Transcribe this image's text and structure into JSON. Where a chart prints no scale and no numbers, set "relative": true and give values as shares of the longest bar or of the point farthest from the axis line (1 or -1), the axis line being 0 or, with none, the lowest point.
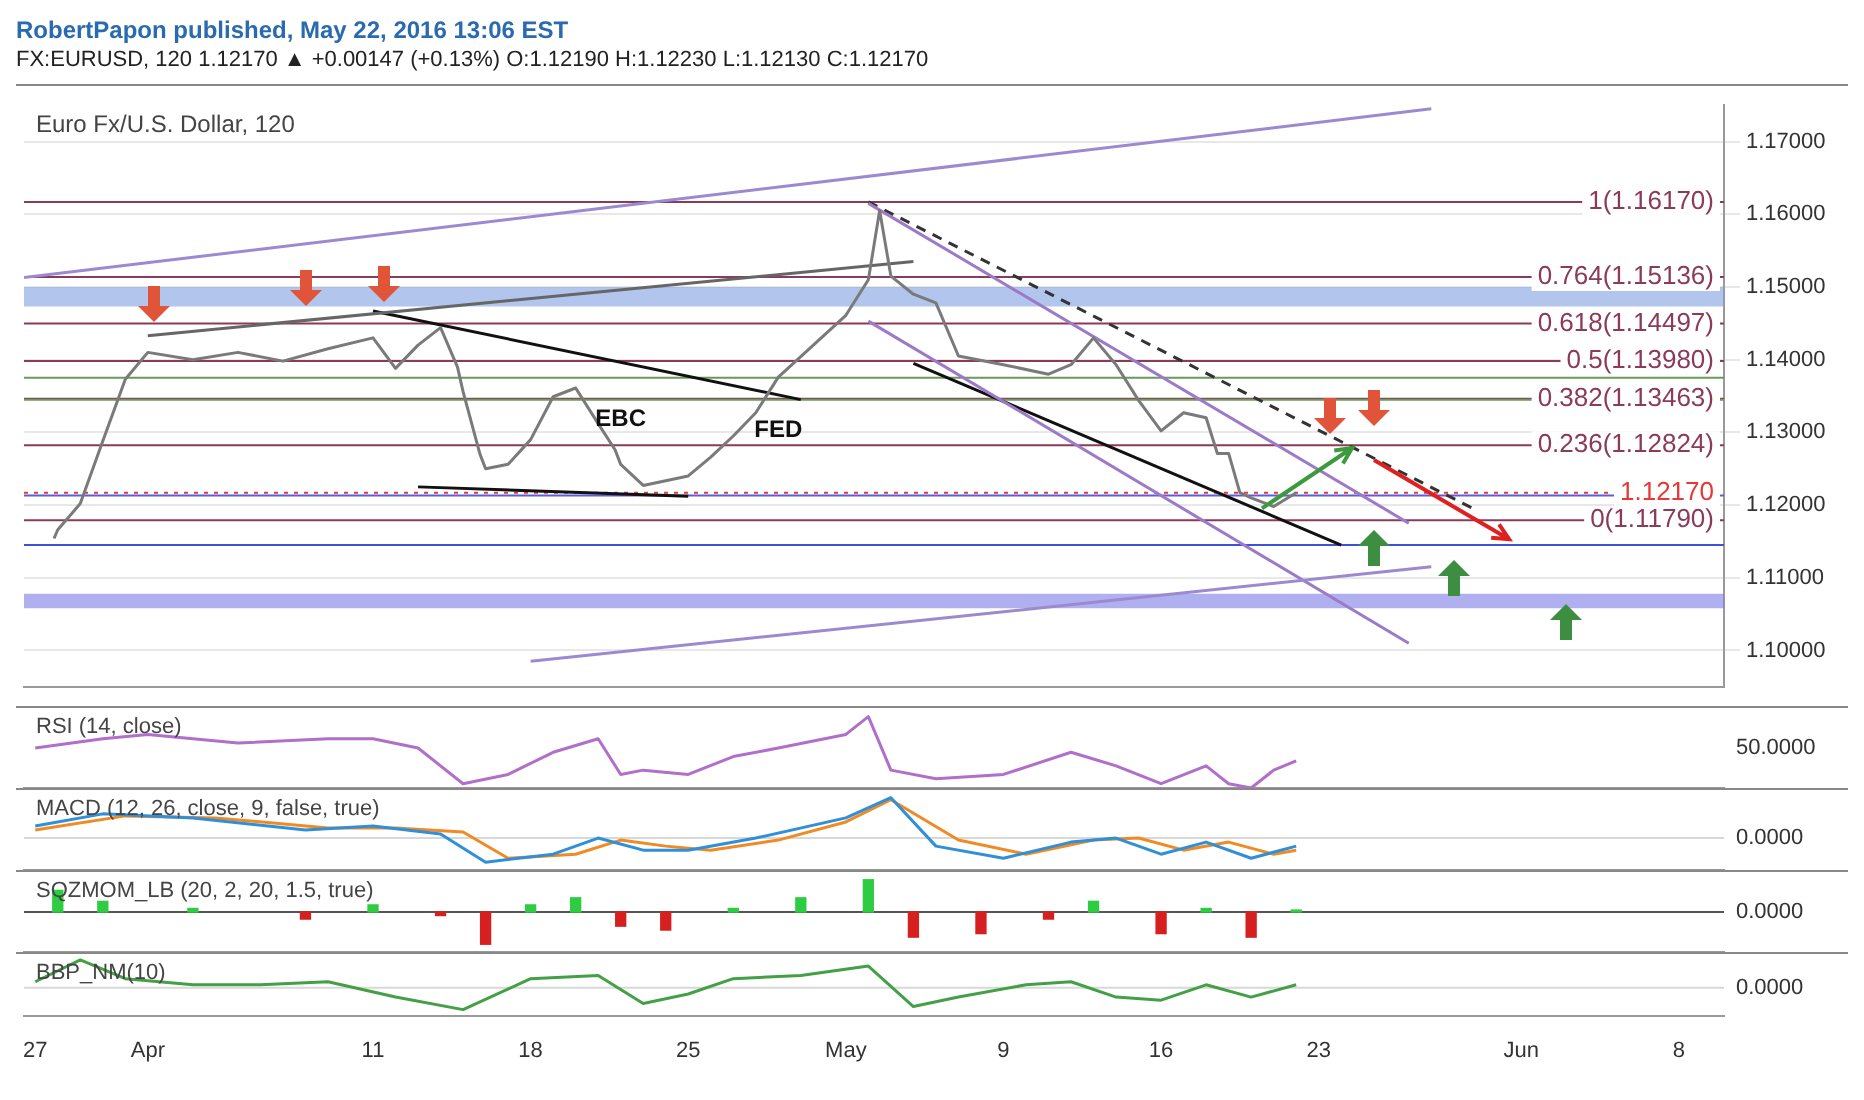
{
  "chart_data": [
    {
      "type": "line",
      "title": "Euro Fx/U.S. Dollar, 120",
      "subtitle": "FX:EURUSD, 120  1.12170 ▲ +0.00147 (+0.13%)  O:1.12190  H:1.12230  L:1.12130  C:1.12170",
      "annotations": [
        "RobertPapon published, May 22, 2016 13:06 EST",
        "EBC",
        "FED"
      ],
      "series": [
        {
          "color": "#7a7a7a",
          "x": [
            "2016-03-27T20:00",
            "2016-03-28",
            "2016-03-29",
            "2016-03-30",
            "2016-03-31",
            "2016-04-01",
            "2016-04-03",
            "2016-04-05",
            "2016-04-07",
            "2016-04-09",
            "2016-04-11",
            "2016-04-12",
            "2016-04-13",
            "2016-04-14",
            "2016-04-14T18:00",
            "2016-04-15",
            "2016-04-15T18:00",
            "2016-04-16",
            "2016-04-17",
            "2016-04-18",
            "2016-04-19",
            "2016-04-20",
            "2016-04-21",
            "2016-04-21T18:00",
            "2016-04-22",
            "2016-04-23",
            "2016-04-25",
            "2016-04-26",
            "2016-04-27",
            "2016-04-28",
            "2016-04-29",
            "2016-05-02",
            "2016-05-03",
            "2016-05-03T12:00",
            "2016-05-04",
            "2016-05-05",
            "2016-05-06",
            "2016-05-07",
            "2016-05-09",
            "2016-05-11",
            "2016-05-12",
            "2016-05-13",
            "2016-05-14",
            "2016-05-15",
            "2016-05-16",
            "2016-05-17",
            "2016-05-18",
            "2016-05-18T12:00",
            "2016-05-19",
            "2016-05-19T12:00",
            "2016-05-20",
            "2016-05-21",
            "2016-05-22"
          ],
          "values": [
            1.1154,
            1.1166,
            1.1202,
            1.1288,
            1.1373,
            1.141,
            1.14,
            1.141,
            1.1398,
            1.1415,
            1.143,
            1.1388,
            1.142,
            1.1444,
            1.139,
            1.1356,
            1.127,
            1.125,
            1.1256,
            1.129,
            1.1349,
            1.1361,
            1.1312,
            1.1276,
            1.1256,
            1.1227,
            1.124,
            1.1266,
            1.1295,
            1.1327,
            1.1376,
            1.1461,
            1.151,
            1.1605,
            1.1515,
            1.149,
            1.1478,
            1.1405,
            1.1393,
            1.138,
            1.1393,
            1.143,
            1.1393,
            1.1344,
            1.1302,
            1.1327,
            1.132,
            1.1271,
            1.1271,
            1.1217,
            1.121,
            1.1198,
            1.1217
          ]
        },
        {
          "type": "line",
          "color": "#9c8ad0",
          "x": [
            "2016-03-26T12:00",
            "2016-05-28"
          ],
          "values": [
            1.1513,
            1.1745
          ]
        },
        {
          "type": "line",
          "color": "#9c8ad0",
          "x": [
            "2016-04-18",
            "2016-05-28"
          ],
          "values": [
            1.0985,
            1.1115
          ]
        },
        {
          "type": "line",
          "color": "#9c7ac8",
          "x": [
            "2016-05-03",
            "2016-05-27"
          ],
          "values": [
            1.1615,
            1.1175
          ]
        },
        {
          "type": "line",
          "color": "#9c7ac8",
          "x": [
            "2016-05-03",
            "2016-05-27"
          ],
          "values": [
            1.1453,
            1.101
          ]
        },
        {
          "type": "line",
          "color": "#333333",
          "line_style": "dashed",
          "x": [
            "2016-05-03",
            "2016-05-30"
          ],
          "values": [
            1.1617,
            1.1193
          ]
        },
        {
          "type": "line",
          "color": "#666666",
          "x": [
            "2016-04-01",
            "2016-05-05"
          ],
          "values": [
            1.1433,
            1.1535
          ]
        },
        {
          "type": "line",
          "color": "#111111",
          "x": [
            "2016-04-11",
            "2016-04-30"
          ],
          "values": [
            1.1467,
            1.1345
          ]
        },
        {
          "type": "line",
          "color": "#111111",
          "x": [
            "2016-04-13",
            "2016-04-25"
          ],
          "values": [
            1.1225,
            1.1212
          ]
        },
        {
          "type": "line",
          "color": "#111111",
          "x": [
            "2016-05-05",
            "2016-05-24"
          ],
          "values": [
            1.1395,
            1.1145
          ]
        }
      ],
      "xlim": [
        "2016-03-26T12:00",
        "2016-06-10"
      ],
      "xticks": [
        {
          "value": "2016-03-27",
          "label": null
        },
        {
          "value": "2016-04-01",
          "label": null
        },
        {
          "value": "2016-04-11",
          "label": null
        },
        {
          "value": "2016-04-18",
          "label": null
        },
        {
          "value": "2016-04-25",
          "label": null
        },
        {
          "value": "2016-05-02",
          "label": null
        },
        {
          "value": "2016-05-09",
          "label": null
        },
        {
          "value": "2016-05-16",
          "label": null
        },
        {
          "value": "2016-05-23",
          "label": null
        },
        {
          "value": "2016-06-01",
          "label": null
        },
        {
          "value": "2016-06-08",
          "label": null
        }
      ],
      "ylim": [
        1.095,
        1.175
      ],
      "yticks": [
        {
          "value": 1.1,
          "label": "1.10000"
        },
        {
          "value": 1.11,
          "label": "1.11000"
        },
        {
          "value": 1.12,
          "label": "1.12000"
        },
        {
          "value": 1.13,
          "label": "1.13000"
        },
        {
          "value": 1.14,
          "label": "1.14000"
        },
        {
          "value": 1.15,
          "label": "1.15000"
        },
        {
          "value": 1.16,
          "label": "1.16000"
        },
        {
          "value": 1.17,
          "label": "1.17000"
        }
      ],
      "ref_lines": [
        {
          "axis": "y",
          "value": 1.1617,
          "label": "1(1.16170)",
          "color": "#8b3a5a"
        },
        {
          "axis": "y",
          "value": 1.15136,
          "label": "0.764(1.15136)",
          "color": "#8b3a5a"
        },
        {
          "axis": "y",
          "value": 1.14497,
          "label": "0.618(1.14497)",
          "color": "#8b3a5a"
        },
        {
          "axis": "y",
          "value": 1.1398,
          "label": "0.5(1.13980)",
          "color": "#8b3a5a"
        },
        {
          "axis": "y",
          "value": 1.13463,
          "label": "0.382(1.13463)",
          "color": "#8b3a5a"
        },
        {
          "axis": "y",
          "value": 1.12824,
          "label": "0.236(1.12824)",
          "color": "#8b3a5a"
        },
        {
          "axis": "y",
          "value": 1.1179,
          "label": "0(1.11790)",
          "color": "#8b3a5a"
        },
        {
          "axis": "y",
          "value": 1.1217,
          "label": "1.12170",
          "color": "#e53935",
          "line_style": "dotted"
        },
        {
          "axis": "y",
          "value": 1.1375,
          "color": "#6a9a5a"
        },
        {
          "axis": "y",
          "value": 1.1345,
          "color": "#6a9a5a"
        },
        {
          "axis": "y",
          "value": 1.1145,
          "color": "#3f51d8"
        },
        {
          "axis": "y",
          "value": 1.1213,
          "color": "#5c5ce0"
        }
      ],
      "bands": [
        {
          "axis": "y",
          "from": 1.1473,
          "to": 1.15,
          "color": "#7f9fe0"
        },
        {
          "axis": "y",
          "from": 1.1058,
          "to": 1.1078,
          "color": "#7b7be8"
        }
      ],
      "grid": true,
      "tick_labels": "y"
    },
    {
      "type": "line",
      "title": "RSI (14, close)",
      "relative": true,
      "annotations": [
        "50.0000"
      ],
      "series": [
        {
          "color": "#b06fc8",
          "x": [
            "2016-03-27",
            "2016-03-30",
            "2016-04-01",
            "2016-04-05",
            "2016-04-09",
            "2016-04-11",
            "2016-04-13",
            "2016-04-15",
            "2016-04-17",
            "2016-04-19",
            "2016-04-21",
            "2016-04-22",
            "2016-04-23",
            "2016-04-25",
            "2016-04-27",
            "2016-04-29",
            "2016-05-02",
            "2016-05-03",
            "2016-05-04",
            "2016-05-06",
            "2016-05-09",
            "2016-05-12",
            "2016-05-14",
            "2016-05-16",
            "2016-05-18",
            "2016-05-19",
            "2016-05-20",
            "2016-05-21",
            "2016-05-22"
          ],
          "values": [
            0.56,
            0.69,
            0.75,
            0.63,
            0.69,
            0.69,
            0.56,
            0.06,
            0.19,
            0.5,
            0.69,
            0.19,
            0.25,
            0.19,
            0.44,
            0.56,
            0.75,
            1,
            0.25,
            0.13,
            0.19,
            0.5,
            0.31,
            0.06,
            0.31,
            0.06,
            0,
            0.25,
            0.38
          ]
        }
      ],
      "xlim": [
        "2016-03-26T12:00",
        "2016-06-10"
      ],
      "tick_labels": false
    },
    {
      "type": "line",
      "title": "MACD (12, 26, close, 9, false, true)",
      "relative": true,
      "series": [
        {
          "color": "#2f8fd8",
          "x": [
            "2016-03-27",
            "2016-03-30",
            "2016-04-03",
            "2016-04-08",
            "2016-04-11",
            "2016-04-14",
            "2016-04-16",
            "2016-04-19",
            "2016-04-21",
            "2016-04-23",
            "2016-04-25",
            "2016-04-28",
            "2016-05-02",
            "2016-05-04",
            "2016-05-06",
            "2016-05-09",
            "2016-05-12",
            "2016-05-14",
            "2016-05-16",
            "2016-05-18",
            "2016-05-20",
            "2016-05-22"
          ],
          "values": [
            0.3,
            0.6,
            0.5,
            0.2,
            0.3,
            0.1,
            -0.6,
            -0.4,
            0,
            -0.3,
            -0.3,
            0,
            0.5,
            1,
            -0.2,
            -0.5,
            -0.1,
            0,
            -0.4,
            -0.1,
            -0.5,
            -0.2
          ]
        },
        {
          "color": "#f08a24",
          "x": [
            "2016-03-27",
            "2016-03-31",
            "2016-04-04",
            "2016-04-09",
            "2016-04-12",
            "2016-04-15",
            "2016-04-17",
            "2016-04-20",
            "2016-04-22",
            "2016-04-24",
            "2016-04-26",
            "2016-04-29",
            "2016-05-02",
            "2016-05-04",
            "2016-05-07",
            "2016-05-10",
            "2016-05-13",
            "2016-05-15",
            "2016-05-17",
            "2016-05-19",
            "2016-05-21",
            "2016-05-22"
          ],
          "values": [
            0.2,
            0.55,
            0.5,
            0.25,
            0.25,
            0.15,
            -0.5,
            -0.4,
            -0.05,
            -0.2,
            -0.3,
            -0.05,
            0.4,
            0.95,
            -0.05,
            -0.4,
            -0.05,
            0,
            -0.3,
            -0.1,
            -0.4,
            -0.3
          ]
        }
      ],
      "xlim": [
        "2016-03-26T12:00",
        "2016-06-10"
      ],
      "ref_lines": [
        {
          "axis": "y",
          "value": 0,
          "label": "0.0000",
          "color": "#d8d8d8"
        }
      ],
      "tick_labels": false
    },
    {
      "type": "bar",
      "title": "SQZMOM_LB (20, 2, 20, 1.5, true)",
      "relative": true,
      "series": [
        {
          "colors": [
            "#2ecc40",
            "#2ecc40",
            "#2ecc40",
            "#d62020",
            "#2ecc40",
            "#d62020",
            "#d62020",
            "#2ecc40",
            "#2ecc40",
            "#d62020",
            "#d62020",
            "#2ecc40",
            "#2ecc40",
            "#2ecc40",
            "#d62020",
            "#d62020",
            "#d62020",
            "#2ecc40",
            "#d62020",
            "#2ecc40",
            "#d62020",
            "#2ecc40"
          ],
          "x": [
            "2016-03-28",
            "2016-03-30",
            "2016-04-03",
            "2016-04-08",
            "2016-04-11",
            "2016-04-14",
            "2016-04-16",
            "2016-04-18",
            "2016-04-20",
            "2016-04-22",
            "2016-04-24",
            "2016-04-27",
            "2016-04-30",
            "2016-05-03",
            "2016-05-05",
            "2016-05-08",
            "2016-05-11",
            "2016-05-13",
            "2016-05-16",
            "2016-05-18",
            "2016-05-20",
            "2016-05-22"
          ],
          "values": [
            0.67,
            0.33,
            0.11,
            -0.22,
            0.22,
            -0.11,
            -1,
            0.22,
            0.44,
            -0.44,
            -0.56,
            0.11,
            0.44,
            1,
            -0.78,
            -0.67,
            -0.22,
            0.33,
            -0.67,
            0.11,
            -0.78,
            0.06
          ]
        }
      ],
      "xlim": [
        "2016-03-26T12:00",
        "2016-06-10"
      ],
      "ref_lines": [
        {
          "axis": "y",
          "value": 0,
          "label": "0.0000",
          "color": "#555555"
        }
      ],
      "tick_labels": false
    },
    {
      "type": "line",
      "title": "BBP_NM(10)",
      "relative": true,
      "series": [
        {
          "color": "#43a047",
          "x": [
            "2016-03-27",
            "2016-03-29",
            "2016-03-31",
            "2016-04-03",
            "2016-04-06",
            "2016-04-09",
            "2016-04-12",
            "2016-04-15",
            "2016-04-18",
            "2016-04-21",
            "2016-04-23",
            "2016-04-25",
            "2016-04-27",
            "2016-04-30",
            "2016-05-03",
            "2016-05-05",
            "2016-05-07",
            "2016-05-10",
            "2016-05-12",
            "2016-05-14",
            "2016-05-16",
            "2016-05-18",
            "2016-05-20",
            "2016-05-22"
          ],
          "values": [
            0.22,
            1,
            0.33,
            0.11,
            0.11,
            0.22,
            -0.33,
            -0.78,
            0.33,
            0.44,
            -0.56,
            -0.22,
            0.33,
            0.44,
            0.78,
            -0.67,
            -0.33,
            0.11,
            0.22,
            -0.33,
            -0.44,
            0.11,
            -0.33,
            0.11
          ]
        }
      ],
      "xlim": [
        "2016-03-26T12:00",
        "2016-06-10"
      ],
      "xticks": [
        {
          "value": "2016-03-27",
          "label": "27"
        },
        {
          "value": "2016-04-01",
          "label": "Apr"
        },
        {
          "value": "2016-04-11",
          "label": "11"
        },
        {
          "value": "2016-04-18",
          "label": "18"
        },
        {
          "value": "2016-04-25",
          "label": "25"
        },
        {
          "value": "2016-05-02",
          "label": "May"
        },
        {
          "value": "2016-05-09",
          "label": "9"
        },
        {
          "value": "2016-05-16",
          "label": "16"
        },
        {
          "value": "2016-05-23",
          "label": "23"
        },
        {
          "value": "2016-06-01",
          "label": "Jun"
        },
        {
          "value": "2016-06-08",
          "label": "8"
        }
      ],
      "ref_lines": [
        {
          "axis": "y",
          "value": 0,
          "label": "0.0000",
          "color": "#d8d8d8"
        }
      ],
      "tick_labels": "x"
    }
  ]
}
